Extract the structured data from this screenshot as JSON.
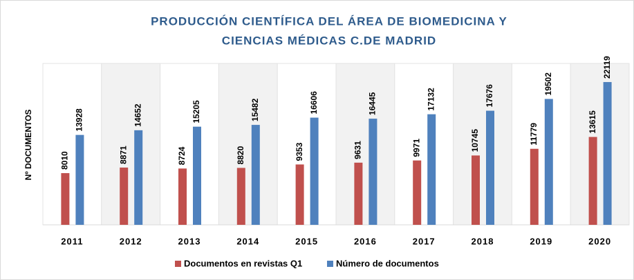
{
  "chart_data": {
    "type": "bar",
    "title": [
      "PRODUCCIÓN CIENTÍFICA DEL ÁREA DE BIOMEDICINA Y",
      "CIENCIAS MÉDICAS C.DE MADRID"
    ],
    "y_label": "Nº DOCUMENTOS",
    "categories": [
      "2011",
      "2012",
      "2013",
      "2014",
      "2015",
      "2016",
      "2017",
      "2018",
      "2019",
      "2020"
    ],
    "series": [
      {
        "name": "Documentos en revistas Q1",
        "color": "#c0504d",
        "values": [
          8010,
          8871,
          8724,
          8820,
          9353,
          9631,
          9971,
          10745,
          11779,
          13615
        ]
      },
      {
        "name": "Número de documentos",
        "color": "#4f81bd",
        "values": [
          13928,
          14652,
          15205,
          15482,
          16606,
          16445,
          17132,
          17676,
          19502,
          22119
        ]
      }
    ],
    "ylim": [
      0,
      25000
    ],
    "legend": "bottom"
  }
}
